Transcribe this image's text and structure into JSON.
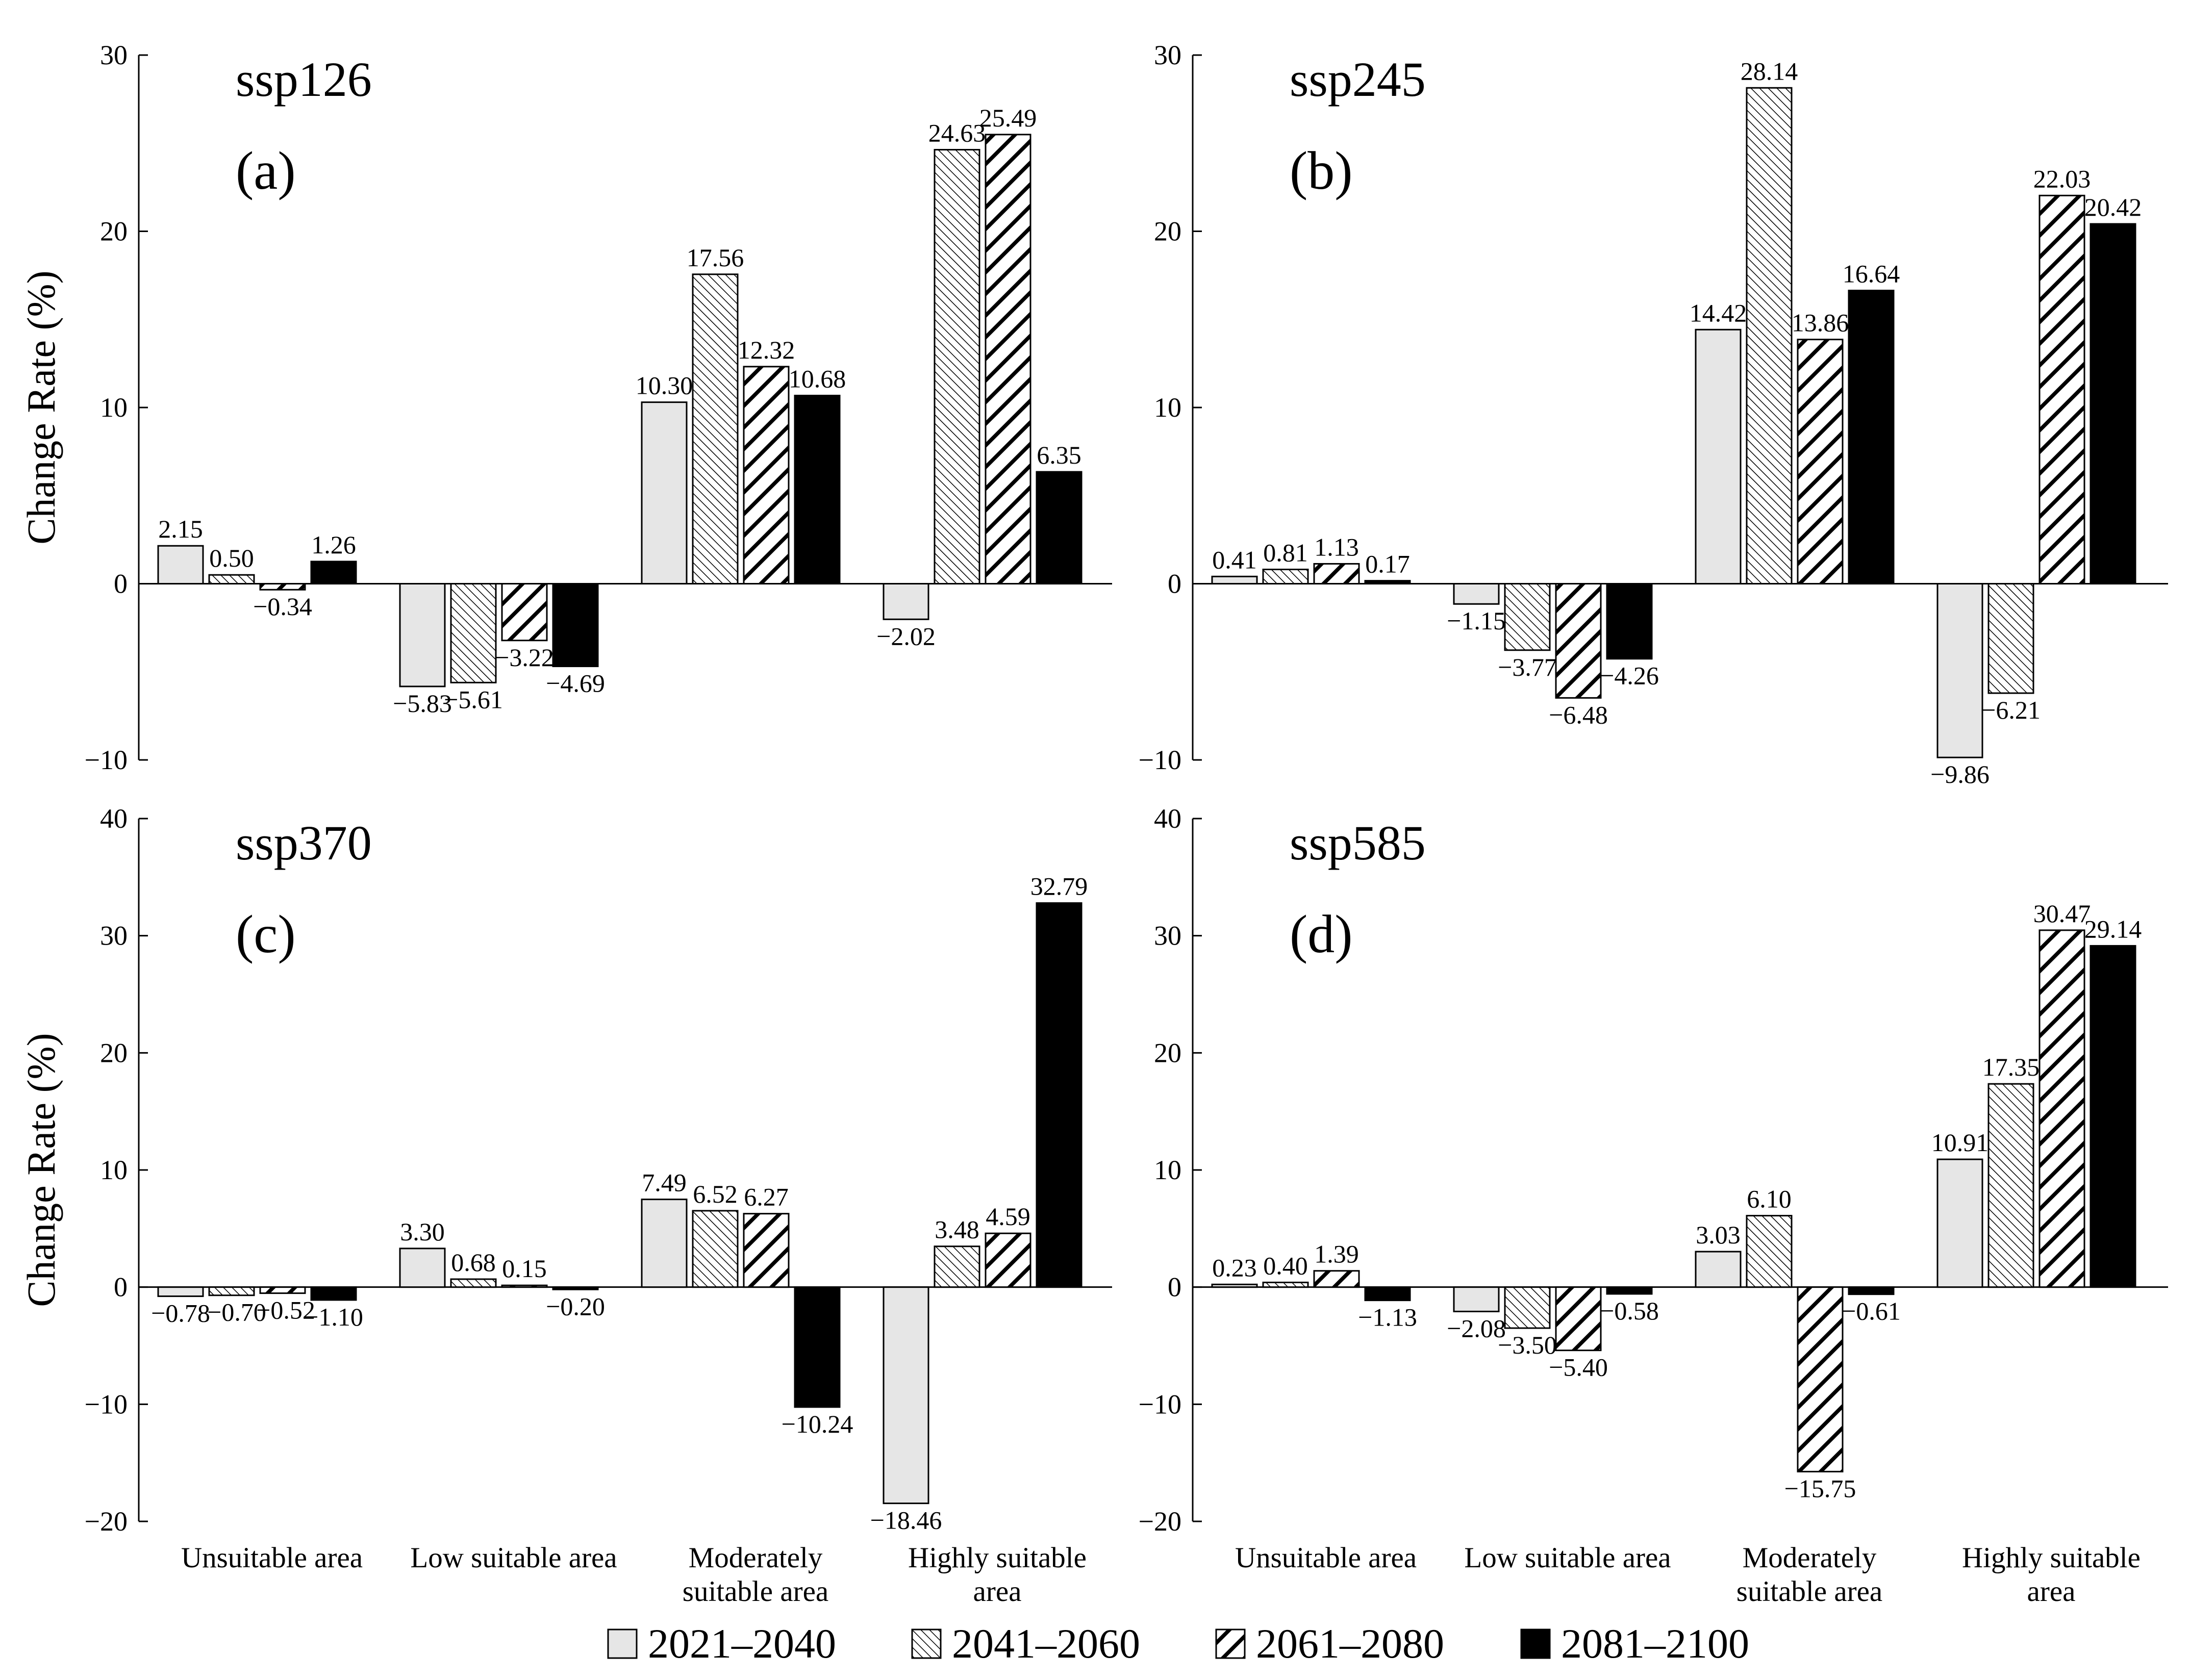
{
  "chart_data": [
    {
      "type": "bar",
      "title": "ssp126",
      "panel_label": "(a)",
      "ylabel": "Change Rate (%)",
      "ylim": [
        -10,
        30
      ],
      "yticks": [
        "30",
        "20",
        "10",
        "0",
        "−10"
      ],
      "categories": [
        "Unsuitable area",
        "Low suitable area",
        "Moderately suitable area",
        "Highly suitable area"
      ],
      "series": [
        {
          "name": "2021–2040",
          "values": [
            2.15,
            -5.83,
            10.3,
            -2.02
          ],
          "labels": [
            "2.15",
            "−5.83",
            "10.30",
            "−2.02"
          ]
        },
        {
          "name": "2041–2060",
          "values": [
            0.5,
            -5.61,
            17.56,
            24.63
          ],
          "labels": [
            "0.50",
            "−5.61",
            "17.56",
            "24.63"
          ]
        },
        {
          "name": "2061–2080",
          "values": [
            -0.34,
            -3.22,
            12.32,
            25.49
          ],
          "labels": [
            "−0.34",
            "−3.22",
            "12.32",
            "25.49"
          ]
        },
        {
          "name": "2081–2100",
          "values": [
            1.26,
            -4.69,
            10.68,
            6.35
          ],
          "labels": [
            "1.26",
            "−4.69",
            "10.68",
            "6.35"
          ]
        }
      ]
    },
    {
      "type": "bar",
      "title": "ssp245",
      "panel_label": "(b)",
      "ylabel": "",
      "ylim": [
        -10,
        30
      ],
      "yticks": [
        "30",
        "20",
        "10",
        "0",
        "−10"
      ],
      "categories": [
        "Unsuitable area",
        "Low suitable area",
        "Moderately suitable area",
        "Highly suitable area"
      ],
      "series": [
        {
          "name": "2021–2040",
          "values": [
            0.41,
            -1.15,
            14.42,
            -9.86
          ],
          "labels": [
            "0.41",
            "−1.15",
            "14.42",
            "−9.86"
          ]
        },
        {
          "name": "2041–2060",
          "values": [
            0.81,
            -3.77,
            28.14,
            -6.21
          ],
          "labels": [
            "0.81",
            "−3.77",
            "28.14",
            "−6.21"
          ]
        },
        {
          "name": "2061–2080",
          "values": [
            1.13,
            -6.48,
            13.86,
            22.03
          ],
          "labels": [
            "1.13",
            "−6.48",
            "13.86",
            "22.03"
          ]
        },
        {
          "name": "2081–2100",
          "values": [
            0.17,
            -4.26,
            16.64,
            20.42
          ],
          "labels": [
            "0.17",
            "−4.26",
            "16.64",
            "20.42"
          ]
        }
      ]
    },
    {
      "type": "bar",
      "title": "ssp370",
      "panel_label": "(c)",
      "ylabel": "Change Rate (%)",
      "ylim": [
        -20,
        40
      ],
      "yticks": [
        "40",
        "30",
        "20",
        "10",
        "0",
        "−10",
        "−20"
      ],
      "categories": [
        "Unsuitable area",
        "Low suitable area",
        "Moderately suitable area",
        "Highly suitable area"
      ],
      "xticklabels": [
        [
          "Unsuitable area"
        ],
        [
          "Low suitable area"
        ],
        [
          "Moderately",
          "suitable area"
        ],
        [
          "Highly suitable",
          "area"
        ]
      ],
      "series": [
        {
          "name": "2021–2040",
          "values": [
            -0.78,
            3.3,
            7.49,
            -18.46
          ],
          "labels": [
            "−0.78",
            "3.30",
            "7.49",
            "−18.46"
          ]
        },
        {
          "name": "2041–2060",
          "values": [
            -0.7,
            0.68,
            6.52,
            3.48
          ],
          "labels": [
            "−0.70",
            "0.68",
            "6.52",
            "3.48"
          ]
        },
        {
          "name": "2061–2080",
          "values": [
            -0.52,
            0.15,
            6.27,
            4.59
          ],
          "labels": [
            "−0.52",
            "0.15",
            "6.27",
            "4.59"
          ]
        },
        {
          "name": "2081–2100",
          "values": [
            -1.1,
            -0.2,
            -10.24,
            32.79
          ],
          "labels": [
            "−1.10",
            "−0.20",
            "−10.24",
            "32.79"
          ]
        }
      ]
    },
    {
      "type": "bar",
      "title": "ssp585",
      "panel_label": "(d)",
      "ylabel": "",
      "ylim": [
        -20,
        40
      ],
      "yticks": [
        "40",
        "30",
        "20",
        "10",
        "0",
        "−10",
        "−20"
      ],
      "categories": [
        "Unsuitable area",
        "Low suitable area",
        "Moderately suitable area",
        "Highly suitable area"
      ],
      "xticklabels": [
        [
          "Unsuitable area"
        ],
        [
          "Low suitable area"
        ],
        [
          "Moderately",
          "suitable area"
        ],
        [
          "Highly suitable",
          "area"
        ]
      ],
      "series": [
        {
          "name": "2021–2040",
          "values": [
            0.23,
            -2.08,
            3.03,
            10.91
          ],
          "labels": [
            "0.23",
            "−2.08",
            "3.03",
            "10.91"
          ]
        },
        {
          "name": "2041–2060",
          "values": [
            0.4,
            -3.5,
            6.1,
            17.35
          ],
          "labels": [
            "0.40",
            "−3.50",
            "6.10",
            "17.35"
          ]
        },
        {
          "name": "2061–2080",
          "values": [
            1.39,
            -5.4,
            -15.75,
            30.47
          ],
          "labels": [
            "1.39",
            "−5.40",
            "−15.75",
            "30.47"
          ]
        },
        {
          "name": "2081–2100",
          "values": [
            -1.13,
            -0.58,
            -0.61,
            29.14
          ],
          "labels": [
            "−1.13",
            "−0.58",
            "−0.61",
            "29.14"
          ]
        }
      ]
    }
  ],
  "legend": {
    "position": "bottom-center",
    "entries": [
      {
        "label": "2021–2040",
        "pattern": "light-gray"
      },
      {
        "label": "2041–2060",
        "pattern": "fine-hatch"
      },
      {
        "label": "2061–2080",
        "pattern": "bold-hatch"
      },
      {
        "label": "2081–2100",
        "pattern": "black"
      }
    ]
  },
  "colors": {
    "light_fill": "#e6e6e6",
    "ink": "#000000",
    "background": "#ffffff"
  }
}
